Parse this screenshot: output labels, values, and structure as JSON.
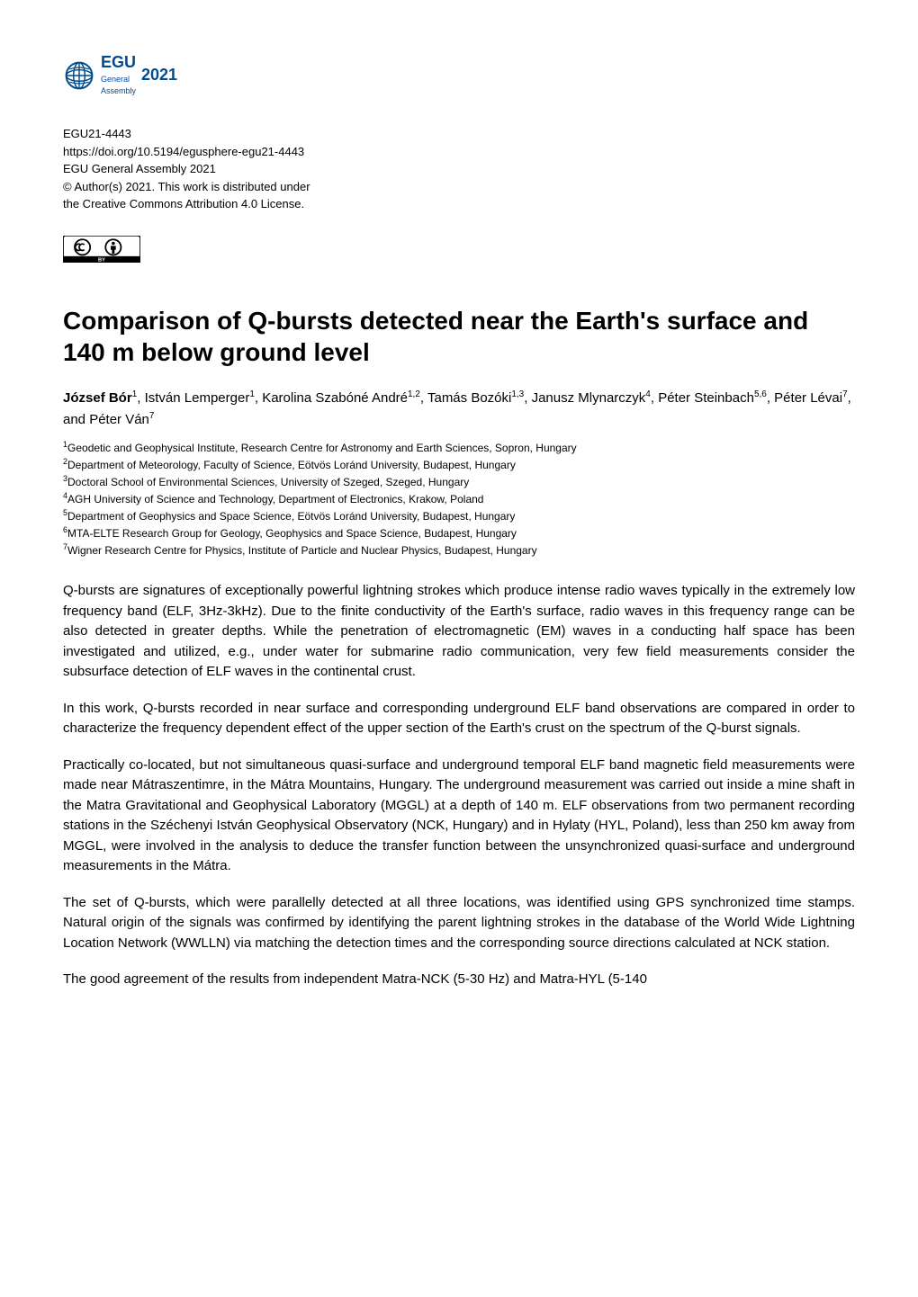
{
  "logo": {
    "egu_label": "EGU",
    "sub_label": "General\nAssembly",
    "year": "2021"
  },
  "meta": {
    "id": "EGU21-4443",
    "doi": "https://doi.org/10.5194/egusphere-egu21-4443",
    "conference": "EGU General Assembly 2021",
    "copyright": "© Author(s) 2021. This work is distributed under",
    "license": "the Creative Commons Attribution 4.0 License."
  },
  "title": "Comparison of Q-bursts detected near the Earth's surface and 140 m below ground level",
  "authors_html": "<b>József Bór</b><sup>1</sup>, István Lemperger<sup>1</sup>, Karolina Szabóné André<sup>1,2</sup>, Tamás Bozóki<sup>1,3</sup>, Janusz Mlynarczyk<sup>4</sup>, Péter Steinbach<sup>5,6</sup>, Péter Lévai<sup>7</sup>, and Péter Ván<sup>7</sup>",
  "affiliations": [
    {
      "n": "1",
      "text": "Geodetic and Geophysical Institute, Research Centre for Astronomy and Earth Sciences, Sopron, Hungary"
    },
    {
      "n": "2",
      "text": "Department of Meteorology, Faculty of Science, Eötvös Loránd University, Budapest, Hungary"
    },
    {
      "n": "3",
      "text": "Doctoral School of Environmental Sciences, University of Szeged, Szeged, Hungary"
    },
    {
      "n": "4",
      "text": "AGH University of Science and Technology, Department of Electronics, Krakow, Poland"
    },
    {
      "n": "5",
      "text": "Department of Geophysics and Space Science, Eötvös Loránd University, Budapest, Hungary"
    },
    {
      "n": "6",
      "text": "MTA-ELTE Research Group for Geology, Geophysics and Space Science, Budapest, Hungary"
    },
    {
      "n": "7",
      "text": "Wigner Research Centre for Physics, Institute of Particle and Nuclear Physics, Budapest, Hungary"
    }
  ],
  "paragraphs": [
    "Q-bursts are signatures of exceptionally powerful lightning strokes which produce intense radio waves typically in the extremely low frequency band (ELF, 3Hz-3kHz). Due to the finite conductivity of the Earth's surface, radio waves in this frequency range can be also detected in greater depths. While the penetration of electromagnetic (EM) waves in a conducting half space has been investigated and utilized, e.g., under water for submarine radio communication, very few field measurements consider the subsurface detection of ELF waves in the continental crust.",
    "In this work, Q-bursts recorded in near surface and corresponding underground ELF band observations are compared in order to characterize the frequency dependent effect of the upper section of the Earth's crust on the spectrum of the Q-burst signals.",
    "Practically co-located, but not simultaneous quasi-surface and underground temporal ELF band magnetic field measurements were made near Mátraszentimre, in the Mátra Mountains, Hungary. The underground measurement was carried out inside a mine shaft in the Matra Gravitational and Geophysical Laboratory (MGGL) at a depth of 140 m. ELF observations from two permanent recording stations in the Széchenyi István Geophysical Observatory (NCK, Hungary) and in Hylaty (HYL, Poland), less than 250 km away from MGGL, were involved in the analysis to deduce the transfer function between the unsynchronized quasi-surface and underground measurements in the Mátra.",
    "The set of Q-bursts, which were parallelly detected at all three locations, was identified using GPS synchronized time stamps. Natural origin of the signals was confirmed by identifying the parent lightning strokes in the database of the World Wide Lightning Location Network (WWLLN) via matching the detection times and the corresponding source directions calculated at NCK station.",
    "The good agreement of the results from independent Matra-NCK (5-30 Hz) and Matra-HYL (5-140"
  ],
  "colors": {
    "egu_blue": "#004b8d",
    "text": "#000000",
    "background": "#ffffff"
  },
  "typography": {
    "title_pt": 28,
    "body_pt": 15,
    "meta_pt": 13,
    "affil_pt": 12
  }
}
